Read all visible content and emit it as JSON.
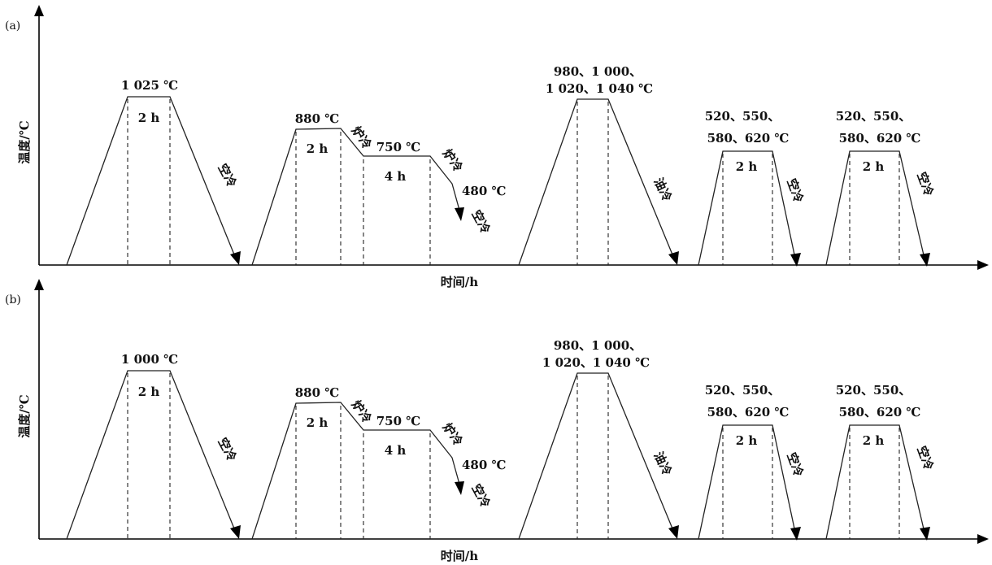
{
  "panels": [
    {
      "id": "a",
      "panel_label": "(a)",
      "y_label": "温度/℃",
      "x_label": "时间/h",
      "stages": {
        "s1": {
          "temp": "1 025 ℃",
          "hold": "2 h",
          "cool": "空冷"
        },
        "s2": {
          "temp1": "880 ℃",
          "hold1": "2 h",
          "cool1": "炉冷",
          "temp2": "750 ℃",
          "hold2": "4 h",
          "cool2": "炉冷",
          "temp3": "480 ℃",
          "cool3": "空冷"
        },
        "s3": {
          "temp_line1": "980、1 000、",
          "temp_line2": "1 020、1 040 ℃",
          "cool": "油冷"
        },
        "s4": {
          "temp_line1": "520、550、",
          "temp_line2": "580、620 ℃",
          "hold": "2 h",
          "cool": "空冷"
        },
        "s5": {
          "temp_line1": "520、550、",
          "temp_line2": "580、620 ℃",
          "hold": "2 h",
          "cool": "空冷"
        }
      }
    },
    {
      "id": "b",
      "panel_label": "(b)",
      "y_label": "温度/℃",
      "x_label": "时间/h",
      "stages": {
        "s1": {
          "temp": "1 000 ℃",
          "hold": "2 h",
          "cool": "空冷"
        },
        "s2": {
          "temp1": "880 ℃",
          "hold1": "2 h",
          "cool1": "炉冷",
          "temp2": "750 ℃",
          "hold2": "4 h",
          "cool2": "炉冷",
          "temp3": "480 ℃",
          "cool3": "空冷"
        },
        "s3": {
          "temp_line1": "980、1 000、",
          "temp_line2": "1 020、1 040 ℃",
          "cool": "油冷"
        },
        "s4": {
          "temp_line1": "520、550、",
          "temp_line2": "580、620 ℃",
          "hold": "2 h",
          "cool": "空冷"
        },
        "s5": {
          "temp_line1": "520、550、",
          "temp_line2": "580、620 ℃",
          "hold": "2 h",
          "cool": "空冷"
        }
      }
    }
  ]
}
